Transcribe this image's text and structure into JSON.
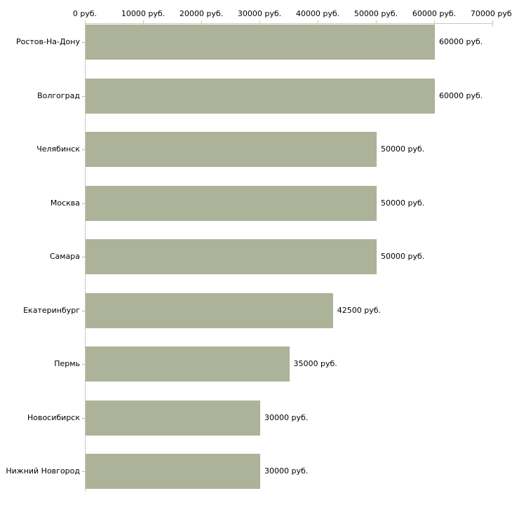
{
  "chart_data": {
    "type": "bar",
    "orientation": "horizontal",
    "categories": [
      "Ростов-На-Дону",
      "Волгоград",
      "Челябинск",
      "Москва",
      "Самара",
      "Екатеринбург",
      "Пермь",
      "Новосибирск",
      "Нижний Новгород"
    ],
    "values": [
      60000,
      60000,
      50000,
      50000,
      50000,
      42500,
      35000,
      30000,
      30000
    ],
    "value_labels": [
      "60000 руб.",
      "60000 руб.",
      "50000 руб.",
      "50000 руб.",
      "50000 руб.",
      "42500 руб.",
      "35000 руб.",
      "30000 руб.",
      "30000 руб."
    ],
    "x_ticks": {
      "values": [
        0,
        10000,
        20000,
        30000,
        40000,
        50000,
        60000,
        70000
      ],
      "labels": [
        "0 руб.",
        "10000 руб.",
        "20000 руб.",
        "30000 руб.",
        "40000 руб.",
        "50000 руб.",
        "60000 руб.",
        "70000 руб."
      ]
    },
    "xlim": [
      0,
      70000
    ],
    "unit": "руб.",
    "grid": false,
    "axis_position": "top",
    "colors": {
      "bar": "#adb398",
      "axis_line": "#c8c8c8",
      "axis_tick": "#cdcd9b",
      "category_tick": "#c9b96a",
      "text": "#000000",
      "background": "#ffffff"
    }
  }
}
